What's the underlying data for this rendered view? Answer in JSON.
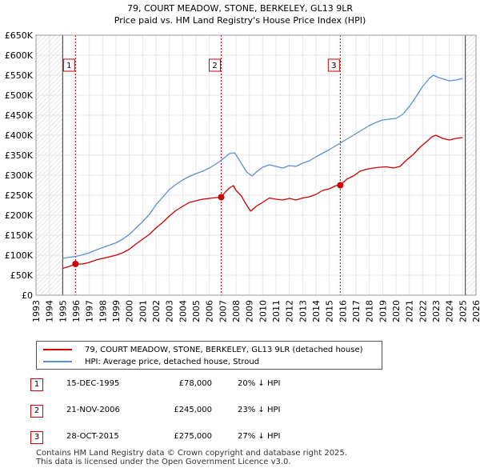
{
  "chart_data": {
    "type": "line",
    "title": "79, COURT MEADOW, STONE, BERKELEY, GL13 9LR",
    "subtitle": "Price paid vs. HM Land Registry's House Price Index (HPI)",
    "xlim": [
      1993,
      2026
    ],
    "ylim": [
      0,
      650000
    ],
    "x_ticks": [
      "1993",
      "1994",
      "1995",
      "1996",
      "1997",
      "1998",
      "1999",
      "2000",
      "2001",
      "2002",
      "2003",
      "2004",
      "2005",
      "2006",
      "2007",
      "2008",
      "2009",
      "2010",
      "2011",
      "2012",
      "2013",
      "2014",
      "2015",
      "2016",
      "2017",
      "2018",
      "2019",
      "2020",
      "2021",
      "2022",
      "2023",
      "2024",
      "2025",
      "2026"
    ],
    "y_ticks": [
      {
        "value": 0,
        "label": "£0"
      },
      {
        "value": 50000,
        "label": "£50K"
      },
      {
        "value": 100000,
        "label": "£100K"
      },
      {
        "value": 150000,
        "label": "£150K"
      },
      {
        "value": 200000,
        "label": "£200K"
      },
      {
        "value": 250000,
        "label": "£250K"
      },
      {
        "value": 300000,
        "label": "£300K"
      },
      {
        "value": 350000,
        "label": "£350K"
      },
      {
        "value": 400000,
        "label": "£400K"
      },
      {
        "value": 450000,
        "label": "£450K"
      },
      {
        "value": 500000,
        "label": "£500K"
      },
      {
        "value": 550000,
        "label": "£550K"
      },
      {
        "value": 600000,
        "label": "£600K"
      },
      {
        "value": 650000,
        "label": "£650K"
      }
    ],
    "hatch_before": 1995.0,
    "hatch_after": 2025.2,
    "series": [
      {
        "name": "79, COURT MEADOW, STONE, BERKELEY, GL13 9LR (detached house)",
        "color": "#cc0000",
        "x": [
          1995.0,
          1995.5,
          1995.96,
          1996.5,
          1997.0,
          1997.5,
          1998.0,
          1998.5,
          1999.0,
          1999.5,
          2000.0,
          2000.5,
          2001.0,
          2001.5,
          2002.0,
          2002.5,
          2003.0,
          2003.5,
          2004.0,
          2004.5,
          2005.0,
          2005.5,
          2006.0,
          2006.5,
          2006.89,
          2007.2,
          2007.5,
          2007.8,
          2008.0,
          2008.4,
          2008.8,
          2009.1,
          2009.5,
          2010.0,
          2010.5,
          2011.0,
          2011.5,
          2012.0,
          2012.5,
          2013.0,
          2013.5,
          2014.0,
          2014.5,
          2015.0,
          2015.5,
          2015.82,
          2016.3,
          2016.8,
          2017.3,
          2017.8,
          2018.3,
          2018.8,
          2019.3,
          2019.8,
          2020.3,
          2020.8,
          2021.3,
          2021.8,
          2022.3,
          2022.7,
          2023.0,
          2023.5,
          2024.0,
          2024.5,
          2025.0
        ],
        "values": [
          67000,
          72000,
          78000,
          78000,
          82000,
          88000,
          92000,
          96000,
          100000,
          106000,
          115000,
          128000,
          140000,
          152000,
          168000,
          182000,
          198000,
          212000,
          222000,
          232000,
          236000,
          240000,
          242000,
          244000,
          245000,
          258000,
          268000,
          274000,
          262000,
          248000,
          225000,
          210000,
          222000,
          232000,
          243000,
          240000,
          238000,
          242000,
          238000,
          243000,
          246000,
          252000,
          262000,
          266000,
          274000,
          275000,
          290000,
          298000,
          310000,
          315000,
          318000,
          320000,
          321000,
          318000,
          322000,
          338000,
          352000,
          370000,
          384000,
          396000,
          400000,
          392000,
          388000,
          392000,
          394000
        ]
      },
      {
        "name": "HPI: Average price, detached house, Stroud",
        "color": "#5b8fcf",
        "x": [
          1995.0,
          1995.5,
          1996.0,
          1996.5,
          1997.0,
          1997.5,
          1998.0,
          1998.5,
          1999.0,
          1999.5,
          2000.0,
          2000.5,
          2001.0,
          2001.5,
          2002.0,
          2002.5,
          2003.0,
          2003.5,
          2004.0,
          2004.5,
          2005.0,
          2005.5,
          2006.0,
          2006.5,
          2007.0,
          2007.5,
          2007.9,
          2008.3,
          2008.8,
          2009.2,
          2009.6,
          2010.0,
          2010.5,
          2011.0,
          2011.5,
          2012.0,
          2012.5,
          2013.0,
          2013.5,
          2014.0,
          2014.5,
          2015.0,
          2015.5,
          2016.0,
          2016.5,
          2017.0,
          2017.5,
          2018.0,
          2018.5,
          2019.0,
          2019.5,
          2020.0,
          2020.5,
          2021.0,
          2021.5,
          2022.0,
          2022.5,
          2022.8,
          2023.2,
          2023.6,
          2024.0,
          2024.5,
          2025.0
        ],
        "values": [
          92000,
          95000,
          97000,
          101000,
          106000,
          113000,
          119000,
          125000,
          131000,
          140000,
          152000,
          168000,
          184000,
          202000,
          226000,
          245000,
          264000,
          277000,
          288000,
          297000,
          304000,
          310000,
          318000,
          328000,
          340000,
          354000,
          356000,
          335000,
          308000,
          298000,
          310000,
          320000,
          326000,
          322000,
          318000,
          324000,
          322000,
          330000,
          336000,
          346000,
          355000,
          364000,
          374000,
          384000,
          394000,
          404000,
          414000,
          424000,
          432000,
          438000,
          440000,
          442000,
          452000,
          472000,
          496000,
          522000,
          542000,
          550000,
          544000,
          540000,
          536000,
          538000,
          542000
        ]
      }
    ],
    "annotations": [
      {
        "label": "1",
        "x": 1995.96,
        "y": 78000
      },
      {
        "label": "2",
        "x": 2006.89,
        "y": 245000
      },
      {
        "label": "3",
        "x": 2015.82,
        "y": 275000
      }
    ]
  },
  "legend": {
    "items": [
      {
        "label": "79, COURT MEADOW, STONE, BERKELEY, GL13 9LR (detached house)",
        "color": "#cc0000"
      },
      {
        "label": "HPI: Average price, detached house, Stroud",
        "color": "#5b8fcf"
      }
    ]
  },
  "transactions": [
    {
      "num": "1",
      "date": "15-DEC-1995",
      "price": "£78,000",
      "hpi": "20% ↓ HPI"
    },
    {
      "num": "2",
      "date": "21-NOV-2006",
      "price": "£245,000",
      "hpi": "23% ↓ HPI"
    },
    {
      "num": "3",
      "date": "28-OCT-2015",
      "price": "£275,000",
      "hpi": "27% ↓ HPI"
    }
  ],
  "footer": {
    "line1": "Contains HM Land Registry data © Crown copyright and database right 2025.",
    "line2": "This data is licensed under the Open Government Licence v3.0."
  }
}
